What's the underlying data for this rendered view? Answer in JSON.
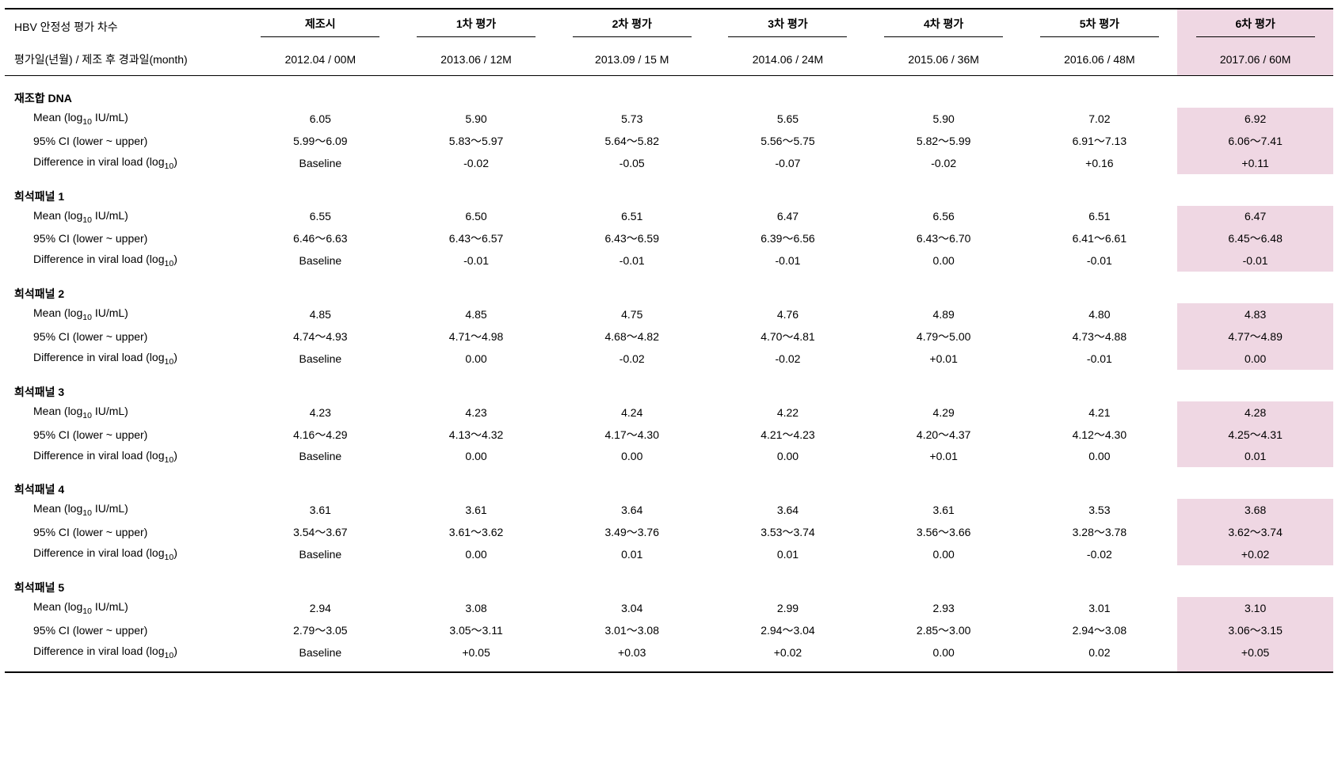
{
  "meta": {
    "highlight_color": "#efd7e3",
    "text_color": "#000000",
    "background_color": "#ffffff",
    "rule_color": "#000000",
    "font_family": "Arial / Malgun Gothic",
    "font_size_pt": 11
  },
  "header": {
    "row1_label": "HBV 안정성 평가 차수",
    "row2_label": "평가일(년월) / 제조 후 경과일(month)",
    "columns": [
      {
        "title": "제조시",
        "subtitle": "2012.04 / 00M",
        "highlight": false
      },
      {
        "title": "1차 평가",
        "subtitle": "2013.06 / 12M",
        "highlight": false
      },
      {
        "title": "2차 평가",
        "subtitle": "2013.09 / 15 M",
        "highlight": false
      },
      {
        "title": "3차 평가",
        "subtitle": "2014.06 / 24M",
        "highlight": false
      },
      {
        "title": "4차 평가",
        "subtitle": "2015.06 / 36M",
        "highlight": false
      },
      {
        "title": "5차 평가",
        "subtitle": "2016.06 / 48M",
        "highlight": false
      },
      {
        "title": "6차 평가",
        "subtitle": "2017.06 / 60M",
        "highlight": true
      }
    ]
  },
  "metric_labels": {
    "mean_prefix": "Mean (log",
    "mean_sub": "10",
    "mean_suffix": " IU/mL)",
    "ci": "95% CI (lower ~ upper)",
    "diff_prefix": "Difference in viral load (log",
    "diff_sub": "10",
    "diff_suffix": ")"
  },
  "groups": [
    {
      "title": "재조합 DNA",
      "mean": [
        "6.05",
        "5.90",
        "5.73",
        "5.65",
        "5.90",
        "7.02",
        "6.92"
      ],
      "ci": [
        "5.99～6.09",
        "5.83～5.97",
        "5.64～5.82",
        "5.56～5.75",
        "5.82～5.99",
        "6.91～7.13",
        "6.06～7.41"
      ],
      "diff": [
        "Baseline",
        "-0.02",
        "-0.05",
        "-0.07",
        "-0.02",
        "+0.16",
        "+0.11"
      ]
    },
    {
      "title": "희석패널 1",
      "mean": [
        "6.55",
        "6.50",
        "6.51",
        "6.47",
        "6.56",
        "6.51",
        "6.47"
      ],
      "ci": [
        "6.46～6.63",
        "6.43～6.57",
        "6.43～6.59",
        "6.39～6.56",
        "6.43～6.70",
        "6.41～6.61",
        "6.45～6.48"
      ],
      "diff": [
        "Baseline",
        "-0.01",
        "-0.01",
        "-0.01",
        "0.00",
        "-0.01",
        "-0.01"
      ]
    },
    {
      "title": "희석패널 2",
      "mean": [
        "4.85",
        "4.85",
        "4.75",
        "4.76",
        "4.89",
        "4.80",
        "4.83"
      ],
      "ci": [
        "4.74～4.93",
        "4.71～4.98",
        "4.68～4.82",
        "4.70～4.81",
        "4.79～5.00",
        "4.73～4.88",
        "4.77～4.89"
      ],
      "diff": [
        "Baseline",
        "0.00",
        "-0.02",
        "-0.02",
        "+0.01",
        "-0.01",
        "0.00"
      ]
    },
    {
      "title": "희석패널 3",
      "mean": [
        "4.23",
        "4.23",
        "4.24",
        "4.22",
        "4.29",
        "4.21",
        "4.28"
      ],
      "ci": [
        "4.16～4.29",
        "4.13～4.32",
        "4.17～4.30",
        "4.21～4.23",
        "4.20～4.37",
        "4.12～4.30",
        "4.25～4.31"
      ],
      "diff": [
        "Baseline",
        "0.00",
        "0.00",
        "0.00",
        "+0.01",
        "0.00",
        "0.01"
      ]
    },
    {
      "title": "희석패널 4",
      "mean": [
        "3.61",
        "3.61",
        "3.64",
        "3.64",
        "3.61",
        "3.53",
        "3.68"
      ],
      "ci": [
        "3.54～3.67",
        "3.61～3.62",
        "3.49～3.76",
        "3.53～3.74",
        "3.56～3.66",
        "3.28～3.78",
        "3.62～3.74"
      ],
      "diff": [
        "Baseline",
        "0.00",
        "0.01",
        "0.01",
        "0.00",
        "-0.02",
        "+0.02"
      ]
    },
    {
      "title": "희석패널 5",
      "mean": [
        "2.94",
        "3.08",
        "3.04",
        "2.99",
        "2.93",
        "3.01",
        "3.10"
      ],
      "ci": [
        "2.79～3.05",
        "3.05～3.11",
        "3.01～3.08",
        "2.94～3.04",
        "2.85～3.00",
        "2.94～3.08",
        "3.06～3.15"
      ],
      "diff": [
        "Baseline",
        "+0.05",
        "+0.03",
        "+0.02",
        "0.00",
        "0.02",
        "+0.05"
      ]
    }
  ]
}
